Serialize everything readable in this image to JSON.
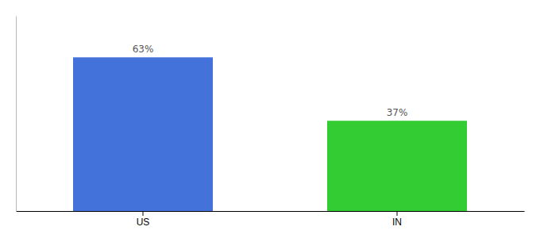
{
  "chart_data": {
    "type": "bar",
    "categories": [
      "US",
      "IN"
    ],
    "values": [
      63,
      37
    ],
    "value_labels": [
      "63%",
      "37%"
    ],
    "colors": [
      "#4472db",
      "#33cc33"
    ],
    "ylim": [
      0,
      80
    ],
    "data_labels": true,
    "tick_labels": "x",
    "grid": false
  }
}
